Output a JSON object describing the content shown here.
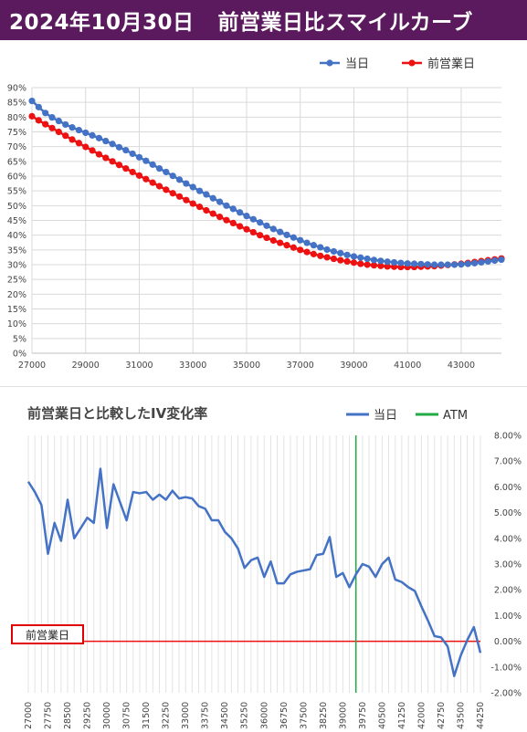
{
  "header": {
    "date": "2024年10月30日",
    "title": "前営業日比スマイルカーブ"
  },
  "colors": {
    "header_bg": "#5b1a5e",
    "today": "#4472c4",
    "prev_day": "#ee1111",
    "atm": "#22aa44",
    "reference_line": "#ee1111"
  },
  "chart_data": [
    {
      "type": "line",
      "title": "",
      "legend_position": "top-right",
      "grid": true,
      "x_ticks": [
        "27000",
        "29000",
        "31000",
        "33000",
        "35000",
        "37000",
        "39000",
        "41000",
        "43000"
      ],
      "y_ticks": [
        "0%",
        "5%",
        "10%",
        "15%",
        "20%",
        "25%",
        "30%",
        "35%",
        "40%",
        "45%",
        "50%",
        "55%",
        "60%",
        "65%",
        "70%",
        "75%",
        "80%",
        "85%",
        "90%"
      ],
      "xlim": [
        27000,
        44500
      ],
      "ylim": [
        0,
        90
      ],
      "x_start": 27000,
      "x_step": 250,
      "series": [
        {
          "name": "当日",
          "color": "#4472c4",
          "values": [
            85.5,
            83.4,
            81.4,
            79.9,
            78.7,
            77.5,
            76.5,
            75.6,
            74.7,
            73.8,
            72.9,
            71.9,
            70.9,
            69.8,
            68.8,
            67.6,
            66.4,
            65.2,
            63.9,
            62.6,
            61.4,
            60.1,
            58.8,
            57.5,
            56.3,
            55.0,
            53.8,
            52.5,
            51.3,
            50.0,
            48.9,
            47.7,
            46.5,
            45.4,
            44.3,
            43.2,
            42.1,
            41.1,
            40.1,
            39.2,
            38.3,
            37.4,
            36.6,
            35.9,
            35.1,
            34.5,
            33.9,
            33.3,
            32.8,
            32.4,
            32.0,
            31.6,
            31.3,
            31.0,
            30.8,
            30.6,
            30.4,
            30.3,
            30.2,
            30.1,
            30.0,
            30.0,
            30.0,
            30.0,
            30.1,
            30.3,
            30.5,
            30.8,
            31.1,
            31.4,
            31.7
          ]
        },
        {
          "name": "前営業日",
          "color": "#ee1111",
          "values": [
            80.3,
            78.9,
            77.6,
            76.3,
            75.0,
            73.7,
            72.4,
            71.2,
            69.9,
            68.7,
            67.4,
            66.2,
            65.0,
            63.8,
            62.6,
            61.4,
            60.2,
            59.0,
            57.8,
            56.6,
            55.4,
            54.2,
            53.1,
            51.9,
            50.7,
            49.6,
            48.4,
            47.3,
            46.2,
            45.1,
            44.1,
            43.0,
            42.0,
            41.0,
            40.0,
            39.1,
            38.2,
            37.4,
            36.6,
            35.8,
            35.0,
            34.3,
            33.6,
            33.0,
            32.5,
            32.0,
            31.5,
            31.1,
            30.7,
            30.3,
            30.0,
            29.8,
            29.6,
            29.4,
            29.3,
            29.2,
            29.2,
            29.2,
            29.3,
            29.4,
            29.5,
            29.7,
            29.9,
            30.1,
            30.3,
            30.6,
            30.9,
            31.2,
            31.5,
            31.8,
            32.1
          ]
        }
      ]
    },
    {
      "type": "line",
      "title": "前営業日と比較したIV変化率",
      "legend_position": "top-right",
      "grid": true,
      "y_axis_position": "right",
      "x_ticks": [
        "27000",
        "27750",
        "28500",
        "29250",
        "30000",
        "30750",
        "31500",
        "32250",
        "33000",
        "33750",
        "34500",
        "35250",
        "36000",
        "36750",
        "37500",
        "38250",
        "39000",
        "39750",
        "40500",
        "41250",
        "42000",
        "42750",
        "43500",
        "44250"
      ],
      "y_ticks": [
        "-2.00%",
        "-1.00%",
        "0.00%",
        "1.00%",
        "2.00%",
        "3.00%",
        "4.00%",
        "5.00%",
        "6.00%",
        "7.00%",
        "8.00%"
      ],
      "xlim": [
        27000,
        44250
      ],
      "ylim": [
        -2.0,
        8.0
      ],
      "x_start": 27000,
      "x_step": 250,
      "atm": 39500,
      "reference_label": "前営業日",
      "reference_value": 0.0,
      "series": [
        {
          "name": "当日",
          "color": "#4472c4",
          "values": [
            6.2,
            5.8,
            5.3,
            3.4,
            4.6,
            3.9,
            5.5,
            4.0,
            4.4,
            4.8,
            4.6,
            6.7,
            4.4,
            6.1,
            5.4,
            4.7,
            5.8,
            5.75,
            5.8,
            5.5,
            5.7,
            5.5,
            5.85,
            5.55,
            5.6,
            5.55,
            5.25,
            5.15,
            4.7,
            4.7,
            4.25,
            4.0,
            3.6,
            2.85,
            3.15,
            3.25,
            2.5,
            3.1,
            2.25,
            2.25,
            2.6,
            2.7,
            2.75,
            2.8,
            3.35,
            3.4,
            4.05,
            2.5,
            2.65,
            2.1,
            2.6,
            3.0,
            2.9,
            2.5,
            3.0,
            3.25,
            2.4,
            2.3,
            2.1,
            1.95,
            1.35,
            0.8,
            0.2,
            0.15,
            -0.2,
            -1.35,
            -0.55,
            0.05,
            0.55,
            -0.45
          ]
        },
        {
          "name": "ATM",
          "color": "#22aa44",
          "values": []
        }
      ]
    }
  ]
}
